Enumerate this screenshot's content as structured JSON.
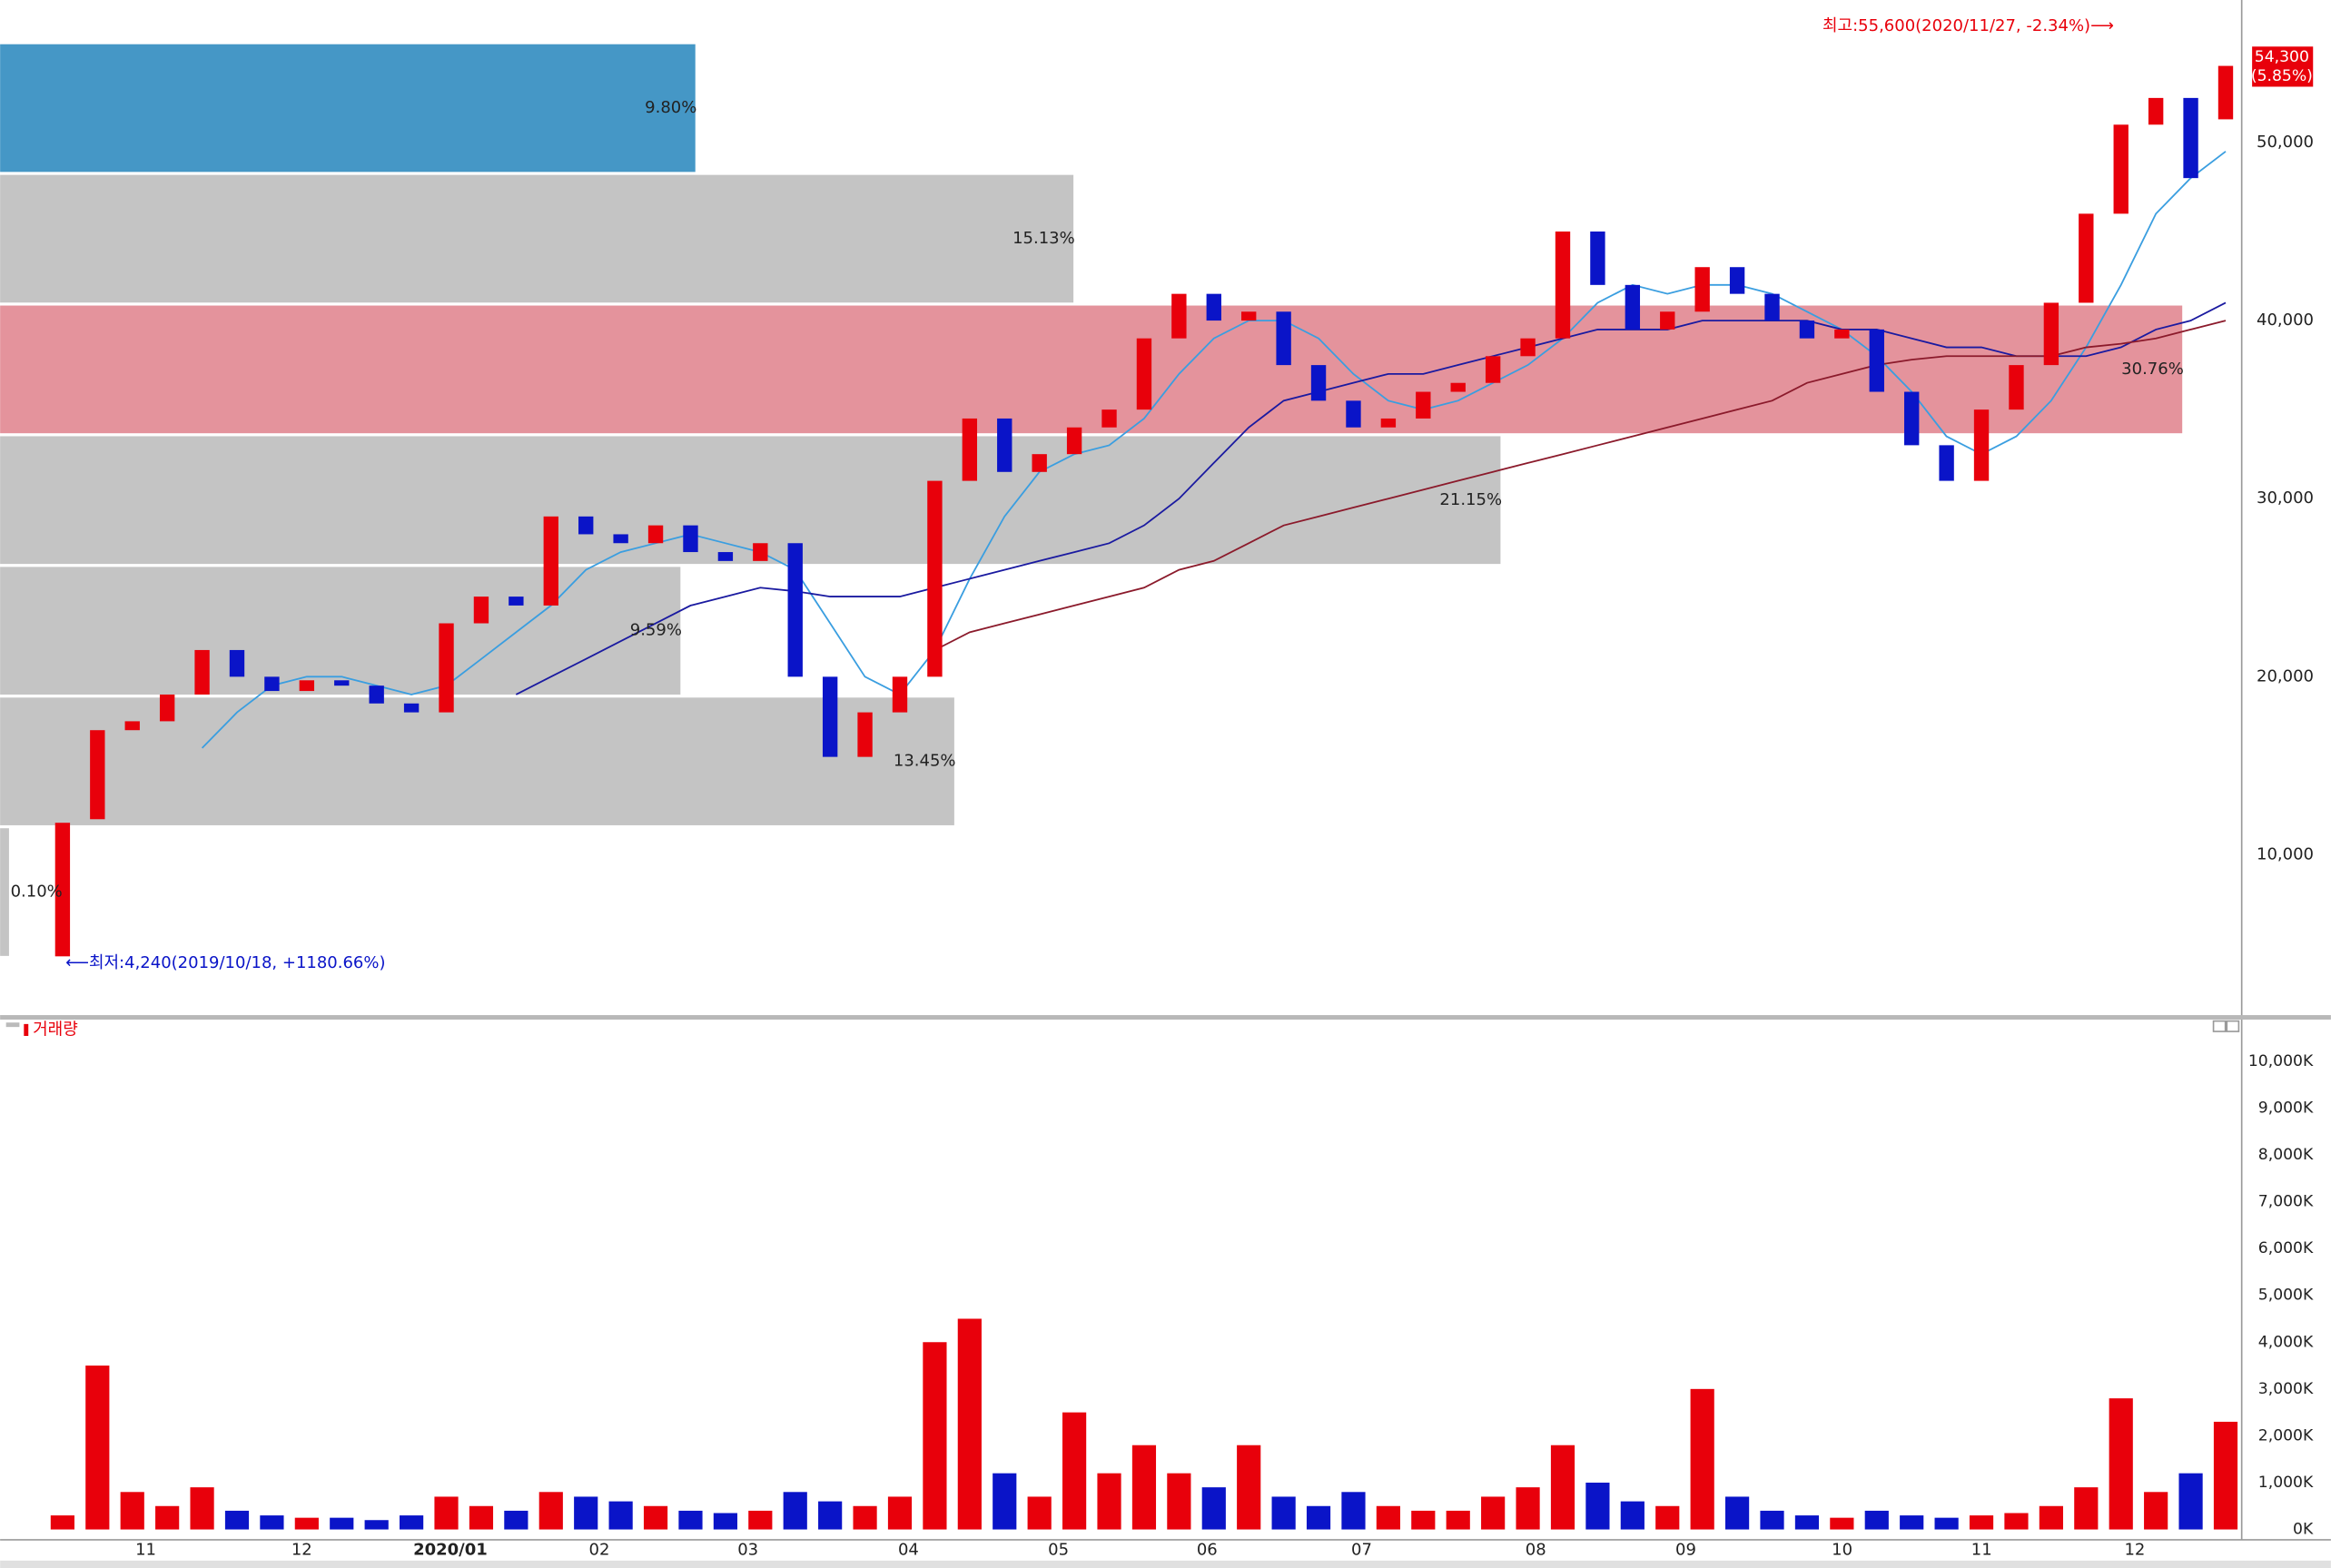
{
  "chart_data": [
    {
      "type": "candlestick",
      "xlim": [
        -1.79,
        62.46
      ],
      "ylim": [
        1000,
        58000
      ],
      "yticks": [
        {
          "value": 10000,
          "label": "10,000"
        },
        {
          "value": 20000,
          "label": "20,000"
        },
        {
          "value": 30000,
          "label": "30,000"
        },
        {
          "value": 40000,
          "label": "40,000"
        },
        {
          "value": 50000,
          "label": "50,000"
        }
      ],
      "grid": true,
      "up_color": "#e8000b",
      "down_color": "#0a14c8",
      "x": [
        0,
        1,
        2,
        3,
        4,
        5,
        6,
        7,
        8,
        9,
        10,
        11,
        12,
        13,
        14,
        15,
        16,
        17,
        18,
        19,
        20,
        21,
        22,
        23,
        24,
        25,
        26,
        27,
        28,
        29,
        30,
        31,
        32,
        33,
        34,
        35,
        36,
        37,
        38,
        39,
        40,
        41,
        42,
        43,
        44,
        45,
        46,
        47,
        48,
        49,
        50,
        51,
        52,
        53,
        54,
        55,
        56,
        57,
        58,
        59,
        60,
        61,
        62
      ],
      "open": [
        4300,
        12000,
        17000,
        17500,
        19000,
        21500,
        20000,
        19200,
        19800,
        19500,
        18500,
        18000,
        23000,
        24500,
        24000,
        29000,
        28000,
        27500,
        28500,
        27000,
        26500,
        27500,
        20000,
        15500,
        18000,
        20000,
        31000,
        34500,
        31500,
        32500,
        34000,
        35000,
        39000,
        41500,
        40000,
        40500,
        37500,
        35500,
        34000,
        34500,
        36000,
        36500,
        38000,
        39000,
        45000,
        42000,
        39500,
        40500,
        43000,
        41500,
        40000,
        39000,
        39500,
        36000,
        33000,
        31000,
        35000,
        37500,
        41000,
        46000,
        51000,
        52500,
        51300
      ],
      "high": {
        "value": 55600,
        "label": "최고:55,600(2020/11/27, -2.34%)⟶"
      },
      "low": {
        "value": 4240,
        "label": "⟵최저:4,240(2019/10/18, +1180.66%)"
      },
      "close": [
        11800,
        17000,
        17500,
        19000,
        21500,
        20000,
        19200,
        19800,
        19500,
        18500,
        18000,
        23000,
        24500,
        24000,
        29000,
        28000,
        27500,
        28500,
        27000,
        26500,
        27500,
        20000,
        15500,
        18000,
        20000,
        31000,
        34500,
        31500,
        32500,
        34000,
        35000,
        39000,
        41500,
        40000,
        40500,
        37500,
        35500,
        34000,
        34500,
        36000,
        36500,
        38000,
        39000,
        45000,
        42000,
        39500,
        40500,
        43000,
        41500,
        40000,
        39000,
        39500,
        36000,
        33000,
        31000,
        35000,
        37500,
        41000,
        46000,
        51000,
        52500,
        48000,
        54300
      ],
      "lines": [
        {
          "color": "#3a9ee0",
          "values": [
            null,
            null,
            null,
            null,
            16000,
            18000,
            19500,
            20000,
            20000,
            19500,
            19000,
            19500,
            21000,
            22500,
            24000,
            26000,
            27000,
            27500,
            28000,
            27500,
            27000,
            26000,
            23000,
            20000,
            19000,
            21500,
            25500,
            29000,
            31500,
            32500,
            33000,
            34500,
            37000,
            39000,
            40000,
            40000,
            39000,
            37000,
            35500,
            35000,
            35500,
            36500,
            37500,
            39000,
            41000,
            42000,
            41500,
            42000,
            42000,
            41500,
            40500,
            39500,
            38000,
            36000,
            33500,
            32500,
            33500,
            35500,
            38500,
            42000,
            46000,
            48000,
            49500
          ]
        },
        {
          "color": "#1a1aa0",
          "values": [
            null,
            null,
            null,
            null,
            null,
            null,
            null,
            null,
            null,
            null,
            null,
            null,
            null,
            19000,
            20000,
            21000,
            22000,
            23000,
            24000,
            24500,
            25000,
            24800,
            24500,
            24500,
            24500,
            25000,
            25500,
            26000,
            26500,
            27000,
            27500,
            28500,
            30000,
            32000,
            34000,
            35500,
            36000,
            36500,
            37000,
            37000,
            37500,
            38000,
            38500,
            39000,
            39500,
            39500,
            39500,
            40000,
            40000,
            40000,
            40000,
            39500,
            39500,
            39000,
            38500,
            38500,
            38000,
            38000,
            38000,
            38500,
            39500,
            40000,
            41000
          ]
        },
        {
          "color": "#8b1a2b",
          "values": [
            null,
            null,
            null,
            null,
            null,
            null,
            null,
            null,
            null,
            null,
            null,
            null,
            null,
            null,
            null,
            null,
            null,
            null,
            null,
            null,
            null,
            null,
            null,
            null,
            null,
            21500,
            22500,
            23000,
            23500,
            24000,
            24500,
            25000,
            26000,
            26500,
            27500,
            28500,
            29000,
            29500,
            30000,
            30500,
            31000,
            31500,
            32000,
            32500,
            33000,
            33500,
            34000,
            34500,
            35000,
            35500,
            36500,
            37000,
            37500,
            37800,
            38000,
            38000,
            38000,
            38000,
            38500,
            38700,
            39000,
            39500,
            40000
          ]
        }
      ],
      "profile": {
        "bins": [
          4240,
          11577,
          18914,
          26251,
          33589,
          40926,
          48263,
          55600
        ],
        "values": [
          0.1,
          13.45,
          9.59,
          21.15,
          30.76,
          15.13,
          9.8
        ],
        "value_labels": [
          "0.10%",
          "13.45%",
          "9.59%",
          "21.15%",
          "30.76%",
          "15.13%",
          "9.80%"
        ],
        "color": "#c4c4c4",
        "max_color": "#e4939c",
        "current_color": "#4597c6"
      },
      "last_price": {
        "value": 54300,
        "label": "54,300"
      },
      "last_change": {
        "value": 5.85,
        "label": "(5.85%)"
      }
    },
    {
      "type": "bar",
      "title": "거래량",
      "ylim": [
        -220,
        10540
      ],
      "yticks": [
        {
          "value": 0,
          "label": "0K"
        },
        {
          "value": 1000,
          "label": "1,000K"
        },
        {
          "value": 2000,
          "label": "2,000K"
        },
        {
          "value": 3000,
          "label": "3,000K"
        },
        {
          "value": 4000,
          "label": "4,000K"
        },
        {
          "value": 5000,
          "label": "5,000K"
        },
        {
          "value": 6000,
          "label": "6,000K"
        },
        {
          "value": 7000,
          "label": "7,000K"
        },
        {
          "value": 8000,
          "label": "8,000K"
        },
        {
          "value": 9000,
          "label": "9,000K"
        },
        {
          "value": 10000,
          "label": "10,000K"
        }
      ],
      "xticks": [
        {
          "value": 2.13,
          "label": "11"
        },
        {
          "value": 6.6,
          "label": "12"
        },
        {
          "value": 10.86,
          "label": "2020/01"
        },
        {
          "value": 15.13,
          "label": "02"
        },
        {
          "value": 19.39,
          "label": "03"
        },
        {
          "value": 23.99,
          "label": "04"
        },
        {
          "value": 28.29,
          "label": "05"
        },
        {
          "value": 32.55,
          "label": "06"
        },
        {
          "value": 36.98,
          "label": "07"
        },
        {
          "value": 41.97,
          "label": "08"
        },
        {
          "value": 46.27,
          "label": "09"
        },
        {
          "value": 50.75,
          "label": "10"
        },
        {
          "value": 54.75,
          "label": "11"
        },
        {
          "value": 59.14,
          "label": "12"
        }
      ],
      "values": [
        300,
        3500,
        800,
        500,
        900,
        400,
        300,
        250,
        250,
        200,
        300,
        700,
        500,
        400,
        800,
        700,
        600,
        500,
        400,
        350,
        400,
        800,
        600,
        500,
        700,
        4000,
        4500,
        1200,
        700,
        2500,
        1200,
        1800,
        1200,
        900,
        1800,
        700,
        500,
        800,
        500,
        400,
        400,
        700,
        900,
        1800,
        1000,
        600,
        500,
        3000,
        700,
        400,
        300,
        250,
        400,
        300,
        250,
        300,
        350,
        500,
        900,
        2800,
        800,
        1200,
        2300
      ]
    }
  ]
}
